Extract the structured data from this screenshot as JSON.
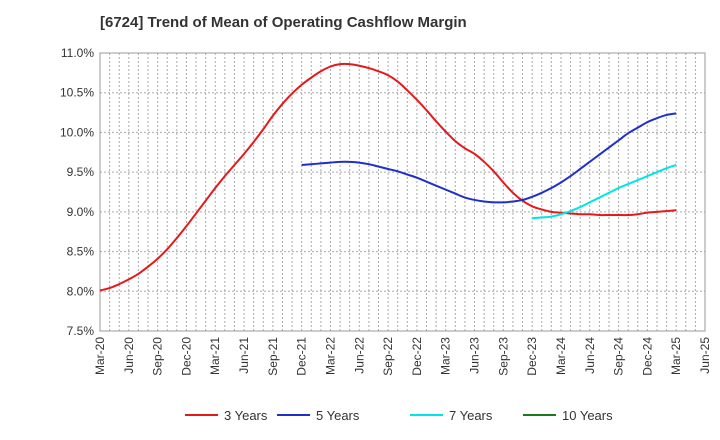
{
  "chart_data": {
    "type": "line",
    "title": "[6724]  Trend of Mean of Operating Cashflow Margin",
    "xlabel": "",
    "ylabel": "",
    "x_ticks": [
      "Mar-20",
      "Jun-20",
      "Sep-20",
      "Dec-20",
      "Mar-21",
      "Jun-21",
      "Sep-21",
      "Dec-21",
      "Mar-22",
      "Jun-22",
      "Sep-22",
      "Dec-22",
      "Mar-23",
      "Jun-23",
      "Sep-23",
      "Dec-23",
      "Mar-24",
      "Jun-24",
      "Sep-24",
      "Dec-24",
      "Mar-25",
      "Jun-25"
    ],
    "y_ticks": [
      "7.5%",
      "8.0%",
      "8.5%",
      "9.0%",
      "9.5%",
      "10.0%",
      "10.5%",
      "11.0%"
    ],
    "ylim": [
      7.5,
      11.0
    ],
    "grid": true,
    "legend_position": "bottom",
    "series": [
      {
        "name": "3 Years",
        "color": "#e31a1c",
        "x": [
          "Mar-20",
          "Apr-20",
          "May-20",
          "Jun-20",
          "Jul-20",
          "Aug-20",
          "Sep-20",
          "Oct-20",
          "Nov-20",
          "Dec-20",
          "Jan-21",
          "Feb-21",
          "Mar-21",
          "Apr-21",
          "May-21",
          "Jun-21",
          "Jul-21",
          "Aug-21",
          "Sep-21",
          "Oct-21",
          "Nov-21",
          "Dec-21",
          "Jan-22",
          "Feb-22",
          "Mar-22",
          "Apr-22",
          "May-22",
          "Jun-22",
          "Jul-22",
          "Aug-22",
          "Sep-22",
          "Oct-22",
          "Nov-22",
          "Dec-22",
          "Jan-23",
          "Feb-23",
          "Mar-23",
          "Apr-23",
          "May-23",
          "Jun-23",
          "Jul-23",
          "Aug-23",
          "Sep-23",
          "Oct-23",
          "Nov-23",
          "Dec-23",
          "Jan-24",
          "Feb-24",
          "Mar-24",
          "Apr-24",
          "May-24",
          "Jun-24",
          "Jul-24",
          "Aug-24",
          "Sep-24",
          "Oct-24",
          "Nov-24",
          "Dec-24",
          "Jan-25",
          "Feb-25",
          "Mar-25"
        ],
        "values": [
          8.01,
          8.04,
          8.09,
          8.15,
          8.22,
          8.31,
          8.41,
          8.53,
          8.67,
          8.82,
          8.98,
          9.14,
          9.3,
          9.45,
          9.59,
          9.73,
          9.88,
          10.04,
          10.21,
          10.36,
          10.49,
          10.6,
          10.69,
          10.77,
          10.83,
          10.86,
          10.86,
          10.84,
          10.81,
          10.77,
          10.72,
          10.64,
          10.53,
          10.41,
          10.28,
          10.14,
          10.01,
          9.89,
          9.8,
          9.73,
          9.63,
          9.51,
          9.37,
          9.24,
          9.14,
          9.07,
          9.03,
          9.0,
          8.99,
          8.98,
          8.97,
          8.97,
          8.96,
          8.96,
          8.96,
          8.96,
          8.97,
          8.99,
          9.0,
          9.01,
          9.02
        ]
      },
      {
        "name": "5 Years",
        "color": "#1f2fcc",
        "x": [
          "Dec-21",
          "Jan-22",
          "Feb-22",
          "Mar-22",
          "Apr-22",
          "May-22",
          "Jun-22",
          "Jul-22",
          "Aug-22",
          "Sep-22",
          "Oct-22",
          "Nov-22",
          "Dec-22",
          "Jan-23",
          "Feb-23",
          "Mar-23",
          "Apr-23",
          "May-23",
          "Jun-23",
          "Jul-23",
          "Aug-23",
          "Sep-23",
          "Oct-23",
          "Nov-23",
          "Dec-23",
          "Jan-24",
          "Feb-24",
          "Mar-24",
          "Apr-24",
          "May-24",
          "Jun-24",
          "Jul-24",
          "Aug-24",
          "Sep-24",
          "Oct-24",
          "Nov-24",
          "Dec-24",
          "Jan-25",
          "Feb-25",
          "Mar-25"
        ],
        "values": [
          9.59,
          9.6,
          9.61,
          9.62,
          9.63,
          9.63,
          9.62,
          9.6,
          9.57,
          9.54,
          9.51,
          9.47,
          9.43,
          9.38,
          9.33,
          9.28,
          9.23,
          9.18,
          9.15,
          9.13,
          9.12,
          9.12,
          9.13,
          9.15,
          9.19,
          9.24,
          9.3,
          9.37,
          9.45,
          9.54,
          9.63,
          9.72,
          9.81,
          9.9,
          9.99,
          10.06,
          10.13,
          10.18,
          10.22,
          10.24
        ]
      },
      {
        "name": "7 Years",
        "color": "#00e5e5",
        "x": [
          "Dec-23",
          "Jan-24",
          "Feb-24",
          "Mar-24",
          "Apr-24",
          "May-24",
          "Jun-24",
          "Jul-24",
          "Aug-24",
          "Sep-24",
          "Oct-24",
          "Nov-24",
          "Dec-24",
          "Jan-25",
          "Feb-25",
          "Mar-25"
        ],
        "values": [
          8.92,
          8.93,
          8.94,
          8.97,
          9.01,
          9.06,
          9.12,
          9.18,
          9.24,
          9.3,
          9.35,
          9.4,
          9.45,
          9.5,
          9.55,
          9.59
        ]
      },
      {
        "name": "10 Years",
        "color": "#1a7a1a",
        "x": [],
        "values": []
      }
    ]
  }
}
